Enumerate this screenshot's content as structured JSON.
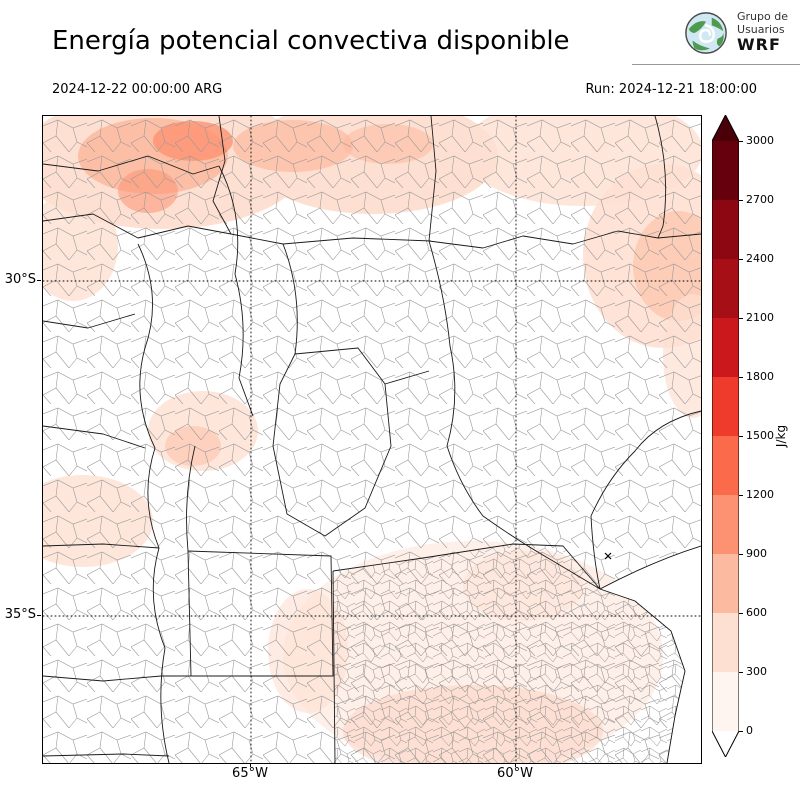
{
  "header": {
    "title": "Energía potencial convectiva disponible",
    "logo": {
      "line1": "Grupo de",
      "line2": "Usuarios",
      "line3": "WRF"
    }
  },
  "times": {
    "valid": "2024-12-22 00:00:00 ARG",
    "run": "Run: 2024-12-21 18:00:00"
  },
  "axes": {
    "lat_ticks": [
      "30°S",
      "35°S"
    ],
    "lon_ticks": [
      "65°W",
      "60°W"
    ]
  },
  "colorbar": {
    "label": "J/kg",
    "ticks": [
      "0",
      "300",
      "600",
      "900",
      "1200",
      "1500",
      "1800",
      "2100",
      "2400",
      "2700",
      "3000"
    ],
    "segment_colors_bottom_to_top": [
      "#fff5f0",
      "#fee0d2",
      "#fcbba1",
      "#fc9272",
      "#fb6a4a",
      "#ef3b2c",
      "#cb181d",
      "#a50f15",
      "#8c0711",
      "#67000d"
    ],
    "under_color": "#ffffff",
    "over_color": "#4a0009"
  },
  "chart_data": {
    "type": "heatmap",
    "title": "Energía potencial convectiva disponible",
    "variable": "CAPE (convective available potential energy)",
    "units": "J/kg",
    "valid_time": "2024-12-22 00:00:00 ARG",
    "model_run": "Run: 2024-12-21 18:00:00",
    "colormap": "Reds",
    "levels": [
      0,
      300,
      600,
      900,
      1200,
      1500,
      1800,
      2100,
      2400,
      2700,
      3000
    ],
    "extent": {
      "lon_min": -69,
      "lon_max": -56.5,
      "lat_min": -37.3,
      "lat_max": -27.5
    },
    "gridlines": {
      "lats_labeled": [
        "30°S",
        "35°S"
      ],
      "lons_labeled": [
        "65°W",
        "60°W"
      ],
      "style": "dotted"
    },
    "regions": [
      {
        "area": "northern band of domain (NW Argentina, Chaco-Formosa)",
        "cape_jkg": "300-900"
      },
      {
        "area": "local maxima in far northwest",
        "cape_jkg": "600-900"
      },
      {
        "area": "northeast corner of domain",
        "cape_jkg": "300-600"
      },
      {
        "area": "eastern edge near 30°S",
        "cape_jkg": "300-600"
      },
      {
        "area": "scattered central-west patches (Córdoba / San Luis)",
        "cape_jkg": "0-300"
      },
      {
        "area": "Buenos Aires province (south-center)",
        "cape_jkg": "0-300"
      },
      {
        "area": "remainder of domain",
        "cape_jkg": "0"
      }
    ]
  }
}
